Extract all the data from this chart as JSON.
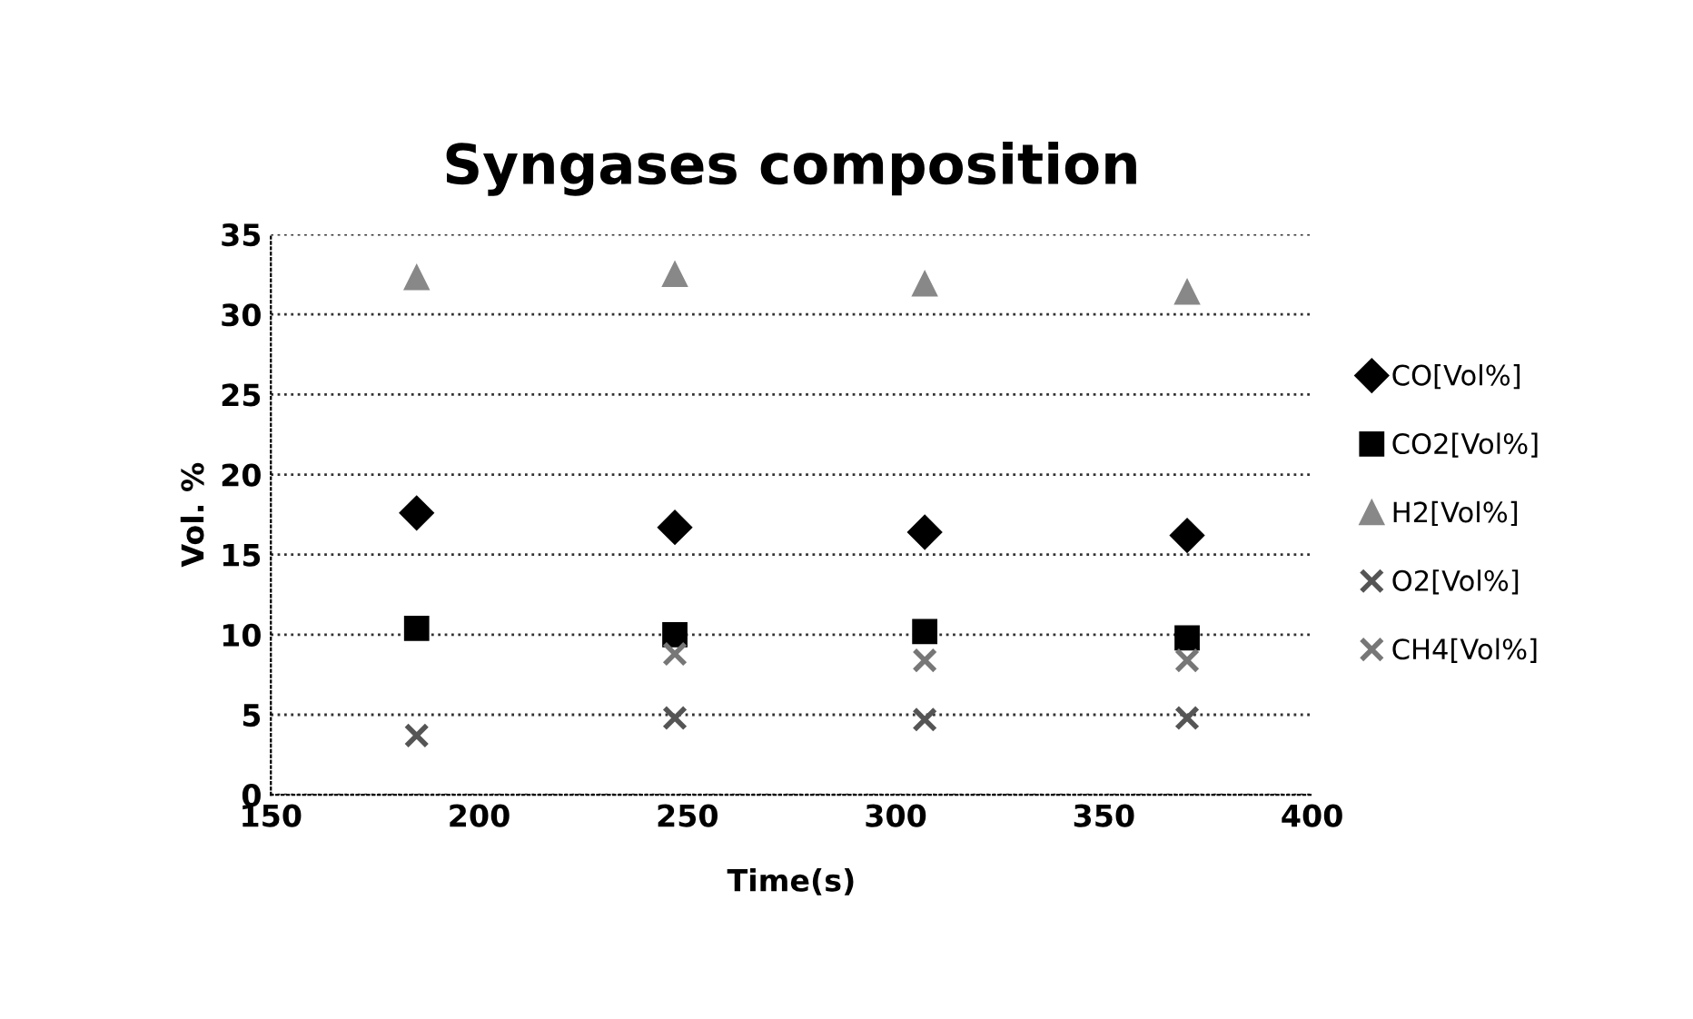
{
  "chart_data": {
    "type": "scatter",
    "title": "Syngases composition",
    "xlabel": "Time(s)",
    "ylabel": "Vol. %",
    "x": [
      185,
      247,
      307,
      370
    ],
    "series": [
      {
        "name": "CO[Vol%]",
        "color": "#000000",
        "marker": "diamond",
        "values": [
          17.6,
          16.7,
          16.4,
          16.2
        ]
      },
      {
        "name": "CO2[Vol%]",
        "color": "#000000",
        "marker": "square",
        "values": [
          10.4,
          10.0,
          10.2,
          9.8
        ]
      },
      {
        "name": "H2[Vol%]",
        "color": "#888888",
        "marker": "triangle",
        "values": [
          32.3,
          32.5,
          31.9,
          31.4
        ]
      },
      {
        "name": "O2[Vol%]",
        "color": "#555555",
        "marker": "cross",
        "values": [
          3.7,
          4.8,
          4.7,
          4.8
        ]
      },
      {
        "name": "CH4[Vol%]",
        "color": "#777777",
        "marker": "cross",
        "values": [
          null,
          8.8,
          8.4,
          8.4
        ]
      }
    ],
    "xlim": [
      150,
      400
    ],
    "xticks": [
      150,
      200,
      250,
      300,
      350,
      400
    ],
    "ylim": [
      0,
      35
    ],
    "yticks": [
      0,
      5,
      10,
      15,
      20,
      25,
      30,
      35
    ],
    "grid": "y",
    "legend": "right"
  }
}
